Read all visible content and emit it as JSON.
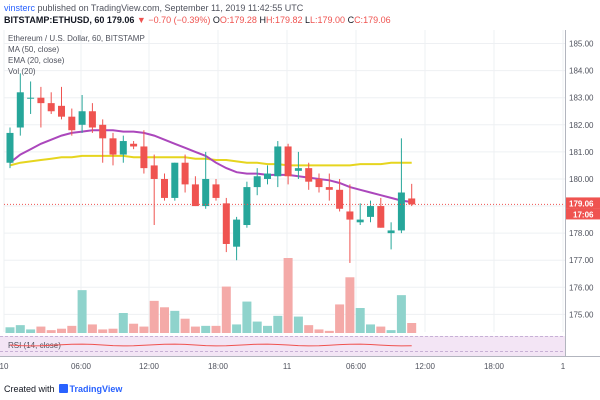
{
  "header": {
    "author": "vinsterc",
    "published": "published on TradingView.com, September 11, 2019 11:42:55 UTC",
    "symbol": "BITSTAMP:ETHUSD, 60",
    "last": "179.06",
    "change": "▼ −0.70 (−0.39%)",
    "ohlc": [
      "O:179.28",
      "H:179.82",
      "L:179.00",
      "C:179.06"
    ]
  },
  "legend": {
    "title": "Ethereum / U.S. Dollar, 60, BITSTAMP",
    "ma": "MA (50, close)",
    "ema": "EMA (20, close)",
    "vol": "Vol (20)",
    "rsi": "RSI (14, close)"
  },
  "footer": {
    "created": "Created with",
    "brand": "TradingView"
  },
  "colors": {
    "up": "#26a69a",
    "down": "#ef5350",
    "ma": "#e6d51f",
    "ema": "#ab47bc",
    "vol_up": "#8fd3cc",
    "vol_down": "#f4aaa8",
    "rsi_bg": "#f3e5f5",
    "rsi_line": "#ef5350",
    "price_line": "#ef5350",
    "grid": "#eef0f3"
  },
  "chart_data": {
    "type": "candlestick",
    "title": "Ethereum / U.S. Dollar, 60, BITSTAMP",
    "y_ticks": [
      175,
      176,
      177,
      178,
      179,
      180,
      181,
      182,
      183,
      184,
      185
    ],
    "ylim": [
      174.35,
      185.5
    ],
    "x_ticks": [
      "10",
      "06:00",
      "12:00",
      "18:00",
      "11",
      "06:00",
      "12:00",
      "18:00",
      "1"
    ],
    "last_price": "179.06",
    "countdown": "17:06",
    "candles": [
      {
        "o": 180.6,
        "h": 181.9,
        "l": 180.4,
        "c": 181.7,
        "v": 0.8
      },
      {
        "o": 181.9,
        "h": 183.9,
        "l": 181.6,
        "c": 183.2,
        "v": 1.1
      },
      {
        "o": 183.0,
        "h": 183.6,
        "l": 182.4,
        "c": 183.0,
        "v": 0.5
      },
      {
        "o": 183.0,
        "h": 183.4,
        "l": 181.9,
        "c": 182.8,
        "v": 0.9
      },
      {
        "o": 182.8,
        "h": 183.2,
        "l": 182.4,
        "c": 182.5,
        "v": 0.4
      },
      {
        "o": 182.7,
        "h": 183.4,
        "l": 182.2,
        "c": 182.3,
        "v": 0.6
      },
      {
        "o": 182.3,
        "h": 182.6,
        "l": 181.6,
        "c": 181.8,
        "v": 1.0
      },
      {
        "o": 182.0,
        "h": 183.1,
        "l": 181.7,
        "c": 182.5,
        "v": 6.0
      },
      {
        "o": 182.5,
        "h": 182.8,
        "l": 181.7,
        "c": 181.9,
        "v": 1.2
      },
      {
        "o": 182.0,
        "h": 182.2,
        "l": 180.6,
        "c": 181.5,
        "v": 0.5
      },
      {
        "o": 181.5,
        "h": 181.7,
        "l": 180.5,
        "c": 180.9,
        "v": 0.6
      },
      {
        "o": 180.9,
        "h": 181.6,
        "l": 180.6,
        "c": 181.4,
        "v": 2.8
      },
      {
        "o": 181.3,
        "h": 181.4,
        "l": 181.1,
        "c": 181.2,
        "v": 1.3
      },
      {
        "o": 181.2,
        "h": 181.8,
        "l": 180.2,
        "c": 180.4,
        "v": 0.9
      },
      {
        "o": 180.5,
        "h": 180.9,
        "l": 178.3,
        "c": 180.0,
        "v": 4.5
      },
      {
        "o": 180.0,
        "h": 180.2,
        "l": 179.2,
        "c": 179.3,
        "v": 3.6
      },
      {
        "o": 179.3,
        "h": 180.6,
        "l": 179.2,
        "c": 180.6,
        "v": 3.1
      },
      {
        "o": 180.6,
        "h": 180.9,
        "l": 179.5,
        "c": 179.8,
        "v": 2.0
      },
      {
        "o": 179.8,
        "h": 180.1,
        "l": 179.0,
        "c": 179.0,
        "v": 0.9
      },
      {
        "o": 179.0,
        "h": 181.0,
        "l": 178.9,
        "c": 180.0,
        "v": 1.0
      },
      {
        "o": 179.8,
        "h": 180.0,
        "l": 179.2,
        "c": 179.3,
        "v": 1.0
      },
      {
        "o": 179.1,
        "h": 179.3,
        "l": 177.3,
        "c": 177.6,
        "v": 6.5
      },
      {
        "o": 177.5,
        "h": 178.6,
        "l": 177.0,
        "c": 178.5,
        "v": 1.2
      },
      {
        "o": 178.3,
        "h": 179.9,
        "l": 178.2,
        "c": 179.7,
        "v": 4.4
      },
      {
        "o": 179.7,
        "h": 180.4,
        "l": 179.4,
        "c": 180.1,
        "v": 1.6
      },
      {
        "o": 180.0,
        "h": 180.5,
        "l": 179.8,
        "c": 180.2,
        "v": 1.0
      },
      {
        "o": 180.1,
        "h": 181.4,
        "l": 179.7,
        "c": 181.2,
        "v": 2.4
      },
      {
        "o": 181.2,
        "h": 181.3,
        "l": 179.8,
        "c": 180.1,
        "v": 10.5
      },
      {
        "o": 180.3,
        "h": 181.0,
        "l": 180.0,
        "c": 180.4,
        "v": 2.3
      },
      {
        "o": 180.4,
        "h": 180.6,
        "l": 179.6,
        "c": 179.9,
        "v": 1.1
      },
      {
        "o": 180.0,
        "h": 180.2,
        "l": 179.5,
        "c": 179.7,
        "v": 0.5
      },
      {
        "o": 179.7,
        "h": 180.2,
        "l": 179.2,
        "c": 179.6,
        "v": 0.3
      },
      {
        "o": 179.6,
        "h": 180.0,
        "l": 178.8,
        "c": 178.9,
        "v": 4.0
      },
      {
        "o": 178.8,
        "h": 179.8,
        "l": 176.9,
        "c": 178.5,
        "v": 7.8
      },
      {
        "o": 178.4,
        "h": 179.1,
        "l": 178.3,
        "c": 178.5,
        "v": 3.5
      },
      {
        "o": 178.6,
        "h": 179.2,
        "l": 178.4,
        "c": 179.0,
        "v": 1.2
      },
      {
        "o": 179.0,
        "h": 179.3,
        "l": 178.2,
        "c": 178.2,
        "v": 0.9
      },
      {
        "o": 178.0,
        "h": 178.4,
        "l": 177.4,
        "c": 178.1,
        "v": 0.4
      },
      {
        "o": 178.1,
        "h": 181.5,
        "l": 178.0,
        "c": 179.5,
        "v": 5.3
      },
      {
        "o": 179.28,
        "h": 179.82,
        "l": 179.0,
        "c": 179.06,
        "v": 1.4
      }
    ],
    "ma50": [
      180.5,
      180.6,
      180.65,
      180.7,
      180.75,
      180.8,
      180.8,
      180.85,
      180.85,
      180.85,
      180.85,
      180.85,
      180.8,
      180.8,
      180.8,
      180.8,
      180.8,
      180.8,
      180.75,
      180.75,
      180.7,
      180.7,
      180.65,
      180.6,
      180.6,
      180.55,
      180.55,
      180.5,
      180.5,
      180.5,
      180.5,
      180.5,
      180.5,
      180.5,
      180.55,
      180.55,
      180.55,
      180.6,
      180.6,
      180.6
    ],
    "ema20": [
      180.6,
      180.9,
      181.1,
      181.3,
      181.45,
      181.6,
      181.7,
      181.75,
      181.8,
      181.8,
      181.8,
      181.75,
      181.75,
      181.7,
      181.6,
      181.45,
      181.3,
      181.15,
      181.0,
      180.85,
      180.6,
      180.4,
      180.25,
      180.2,
      180.2,
      180.15,
      180.15,
      180.15,
      180.1,
      180.05,
      180.0,
      179.95,
      179.85,
      179.7,
      179.6,
      179.5,
      179.4,
      179.3,
      179.2,
      179.15
    ]
  }
}
